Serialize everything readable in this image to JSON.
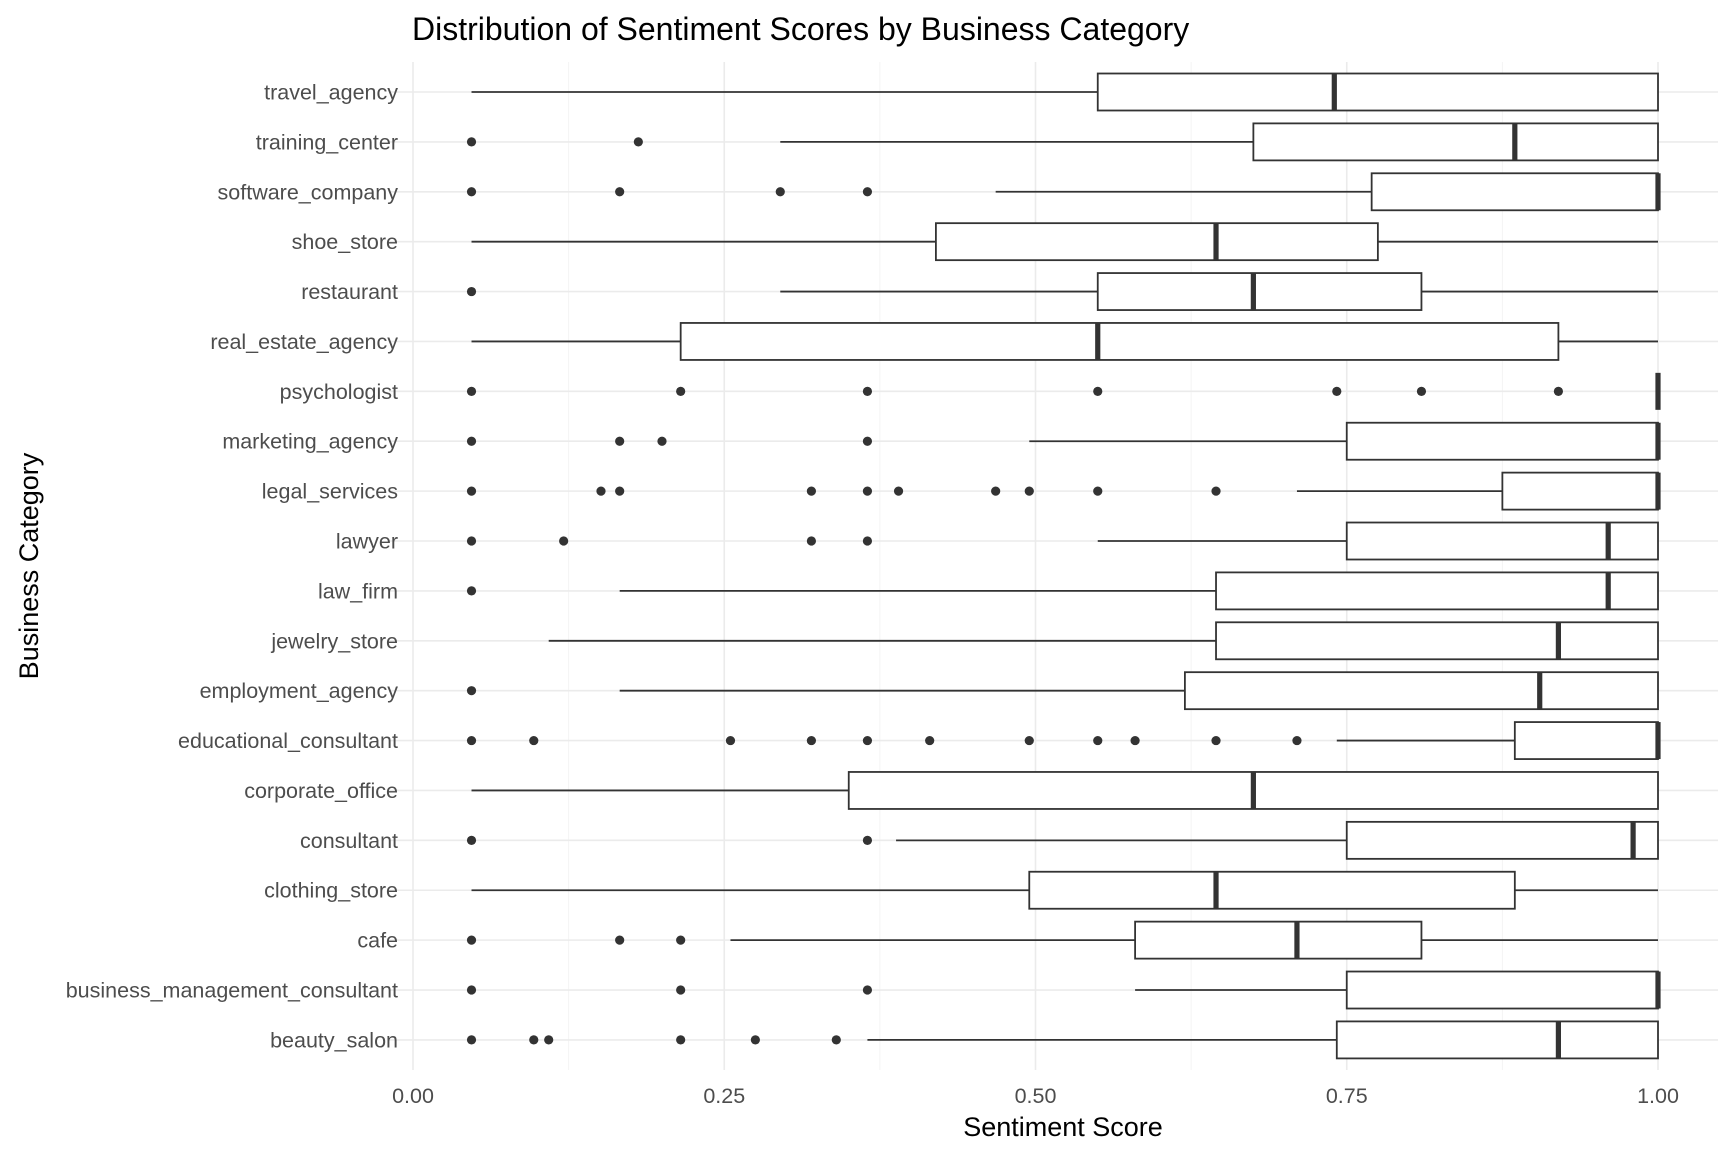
{
  "chart_data": {
    "type": "boxplot",
    "orientation": "horizontal",
    "title": "Distribution of Sentiment Scores by Business Category",
    "xlabel": "Sentiment Score",
    "ylabel": "Business Category",
    "xlim": [
      0,
      1
    ],
    "x_ticks": [
      0,
      0.25,
      0.5,
      0.75,
      1
    ],
    "x_tick_labels": [
      "0.00",
      "0.25",
      "0.50",
      "0.75",
      "1.00"
    ],
    "grid": true,
    "legend": "none",
    "categories": [
      "travel_agency",
      "training_center",
      "software_company",
      "shoe_store",
      "restaurant",
      "real_estate_agency",
      "psychologist",
      "marketing_agency",
      "legal_services",
      "lawyer",
      "law_firm",
      "jewelry_store",
      "employment_agency",
      "educational_consultant",
      "corporate_office",
      "consultant",
      "clothing_store",
      "cafe",
      "business_management_consultant",
      "beauty_salon"
    ],
    "boxes": [
      {
        "category": "travel_agency",
        "whisker_low": 0.047,
        "q1": 0.55,
        "median": 0.74,
        "q3": 1.0,
        "whisker_high": 1.0,
        "outliers": []
      },
      {
        "category": "training_center",
        "whisker_low": 0.295,
        "q1": 0.675,
        "median": 0.885,
        "q3": 1.0,
        "whisker_high": 1.0,
        "outliers": [
          0.047,
          0.181
        ]
      },
      {
        "category": "software_company",
        "whisker_low": 0.468,
        "q1": 0.77,
        "median": 1.0,
        "q3": 1.0,
        "whisker_high": 1.0,
        "outliers": [
          0.047,
          0.166,
          0.295,
          0.365
        ]
      },
      {
        "category": "shoe_store",
        "whisker_low": 0.047,
        "q1": 0.42,
        "median": 0.645,
        "q3": 0.775,
        "whisker_high": 1.0,
        "outliers": []
      },
      {
        "category": "restaurant",
        "whisker_low": 0.295,
        "q1": 0.55,
        "median": 0.675,
        "q3": 0.81,
        "whisker_high": 1.0,
        "outliers": [
          0.047
        ]
      },
      {
        "category": "real_estate_agency",
        "whisker_low": 0.047,
        "q1": 0.215,
        "median": 0.55,
        "q3": 0.92,
        "whisker_high": 1.0,
        "outliers": []
      },
      {
        "category": "psychologist",
        "whisker_low": 1.0,
        "q1": 1.0,
        "median": 1.0,
        "q3": 1.0,
        "whisker_high": 1.0,
        "outliers": [
          0.047,
          0.215,
          0.365,
          0.55,
          0.742,
          0.81,
          0.92
        ]
      },
      {
        "category": "marketing_agency",
        "whisker_low": 0.495,
        "q1": 0.75,
        "median": 1.0,
        "q3": 1.0,
        "whisker_high": 1.0,
        "outliers": [
          0.047,
          0.166,
          0.2,
          0.365
        ]
      },
      {
        "category": "legal_services",
        "whisker_low": 0.71,
        "q1": 0.875,
        "median": 1.0,
        "q3": 1.0,
        "whisker_high": 1.0,
        "outliers": [
          0.047,
          0.151,
          0.166,
          0.32,
          0.365,
          0.39,
          0.468,
          0.495,
          0.55,
          0.645
        ]
      },
      {
        "category": "lawyer",
        "whisker_low": 0.55,
        "q1": 0.75,
        "median": 0.96,
        "q3": 1.0,
        "whisker_high": 1.0,
        "outliers": [
          0.047,
          0.121,
          0.32,
          0.365
        ]
      },
      {
        "category": "law_firm",
        "whisker_low": 0.166,
        "q1": 0.645,
        "median": 0.96,
        "q3": 1.0,
        "whisker_high": 1.0,
        "outliers": [
          0.047
        ]
      },
      {
        "category": "jewelry_store",
        "whisker_low": 0.109,
        "q1": 0.645,
        "median": 0.92,
        "q3": 1.0,
        "whisker_high": 1.0,
        "outliers": []
      },
      {
        "category": "employment_agency",
        "whisker_low": 0.166,
        "q1": 0.62,
        "median": 0.905,
        "q3": 1.0,
        "whisker_high": 1.0,
        "outliers": [
          0.047
        ]
      },
      {
        "category": "educational_consultant",
        "whisker_low": 0.742,
        "q1": 0.885,
        "median": 1.0,
        "q3": 1.0,
        "whisker_high": 1.0,
        "outliers": [
          0.047,
          0.097,
          0.255,
          0.32,
          0.365,
          0.415,
          0.495,
          0.55,
          0.58,
          0.645,
          0.71
        ]
      },
      {
        "category": "corporate_office",
        "whisker_low": 0.047,
        "q1": 0.35,
        "median": 0.675,
        "q3": 1.0,
        "whisker_high": 1.0,
        "outliers": []
      },
      {
        "category": "consultant",
        "whisker_low": 0.388,
        "q1": 0.75,
        "median": 0.98,
        "q3": 1.0,
        "whisker_high": 1.0,
        "outliers": [
          0.047,
          0.365
        ]
      },
      {
        "category": "clothing_store",
        "whisker_low": 0.047,
        "q1": 0.495,
        "median": 0.645,
        "q3": 0.885,
        "whisker_high": 1.0,
        "outliers": []
      },
      {
        "category": "cafe",
        "whisker_low": 0.255,
        "q1": 0.58,
        "median": 0.71,
        "q3": 0.81,
        "whisker_high": 1.0,
        "outliers": [
          0.047,
          0.166,
          0.215
        ]
      },
      {
        "category": "business_management_consultant",
        "whisker_low": 0.58,
        "q1": 0.75,
        "median": 1.0,
        "q3": 1.0,
        "whisker_high": 1.0,
        "outliers": [
          0.047,
          0.215,
          0.365
        ]
      },
      {
        "category": "beauty_salon",
        "whisker_low": 0.365,
        "q1": 0.742,
        "median": 0.92,
        "q3": 1.0,
        "whisker_high": 1.0,
        "outliers": [
          0.047,
          0.097,
          0.109,
          0.215,
          0.275,
          0.34
        ]
      }
    ]
  }
}
